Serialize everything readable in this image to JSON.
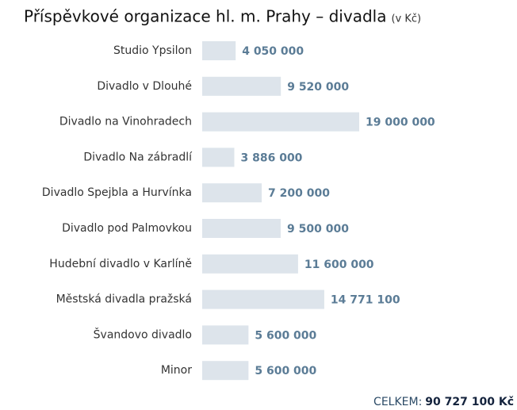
{
  "chart_data": {
    "type": "barh",
    "title": "Příspěvkové organizace hl. m. Prahy – divadla",
    "subtitle": "(v Kč)",
    "categories": [
      "Studio Ypsilon",
      "Divadlo v Dlouhé",
      "Divadlo na Vinohradech",
      "Divadlo Na zábradlí",
      "Divadlo Spejbla a Hurvínka",
      "Divadlo pod Palmovkou",
      "Hudební divadlo v Karlíně",
      "Městská divadla pražská",
      "Švandovo divadlo",
      "Minor"
    ],
    "values": [
      4050000,
      9520000,
      19000000,
      3886000,
      7200000,
      9500000,
      11600000,
      14771100,
      5600000,
      5600000
    ],
    "value_labels": [
      "4 050 000",
      "9 520 000",
      "19 000 000",
      "3 886 000",
      "7 200 000",
      "9 500 000",
      "11 600 000",
      "14 771 100",
      "5 600 000",
      "5 600 000"
    ],
    "color": "#dde4eb",
    "xlim": [
      0,
      19000000
    ],
    "footer_label": "CELKEM:",
    "footer_total": "90 727 100 Kč"
  }
}
